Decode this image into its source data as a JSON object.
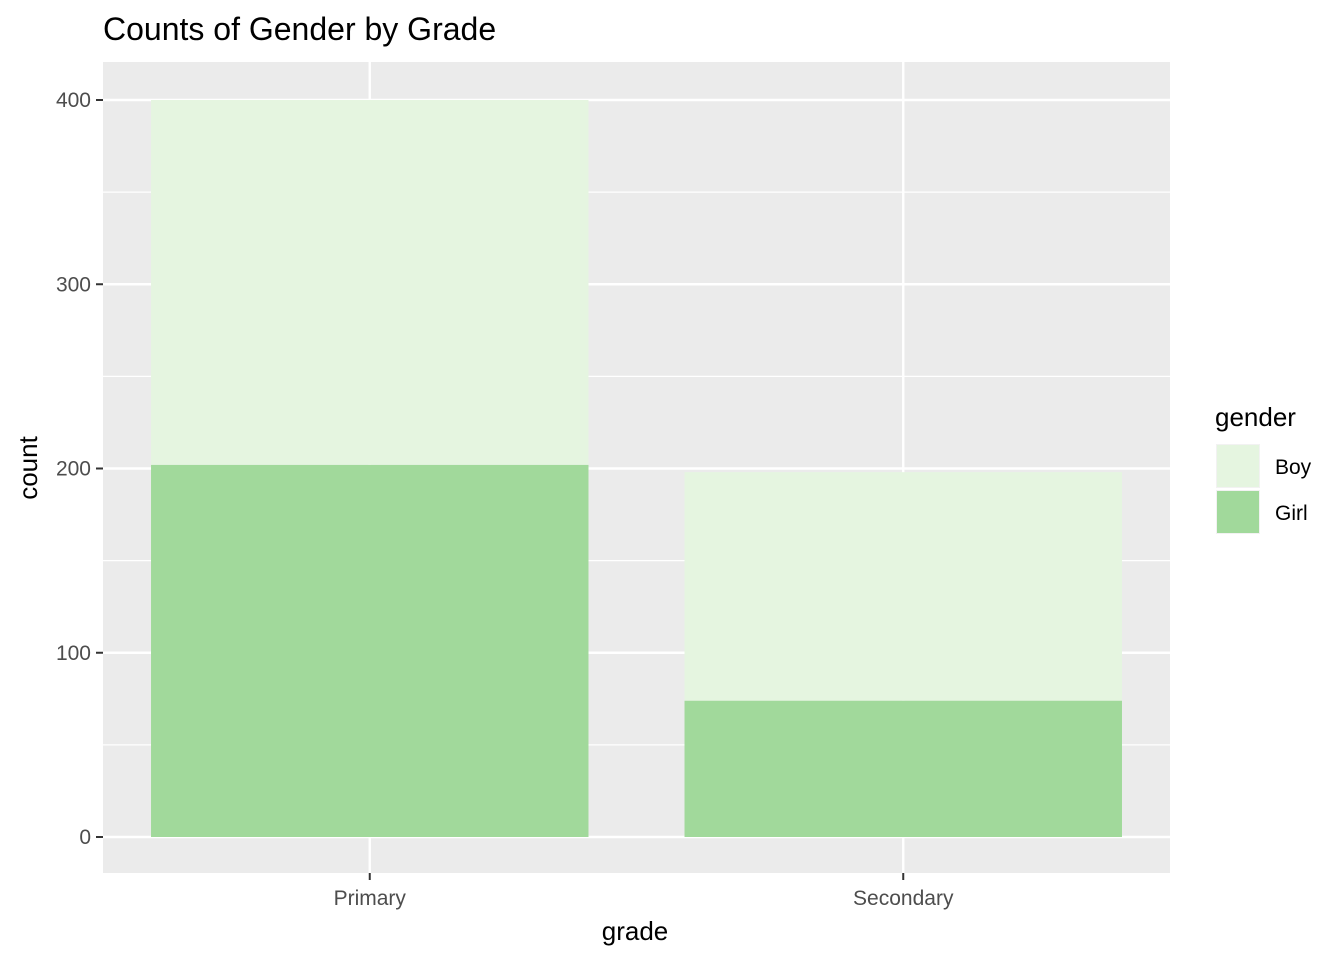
{
  "chart_data": {
    "type": "bar",
    "stacked": true,
    "title": "Counts of Gender by Grade",
    "xlabel": "grade",
    "ylabel": "count",
    "categories": [
      "Primary",
      "Secondary"
    ],
    "series": [
      {
        "name": "Boy",
        "color": "#e5f5e0",
        "values": [
          198,
          124
        ]
      },
      {
        "name": "Girl",
        "color": "#a1d99b",
        "values": [
          202,
          74
        ]
      }
    ],
    "ylim": [
      0,
      400
    ],
    "yticks": [
      0,
      100,
      200,
      300,
      400
    ],
    "legend": {
      "title": "gender",
      "position": "right",
      "entries": [
        "Boy",
        "Girl"
      ]
    },
    "grid": true,
    "panel_background": "#ebebeb"
  }
}
